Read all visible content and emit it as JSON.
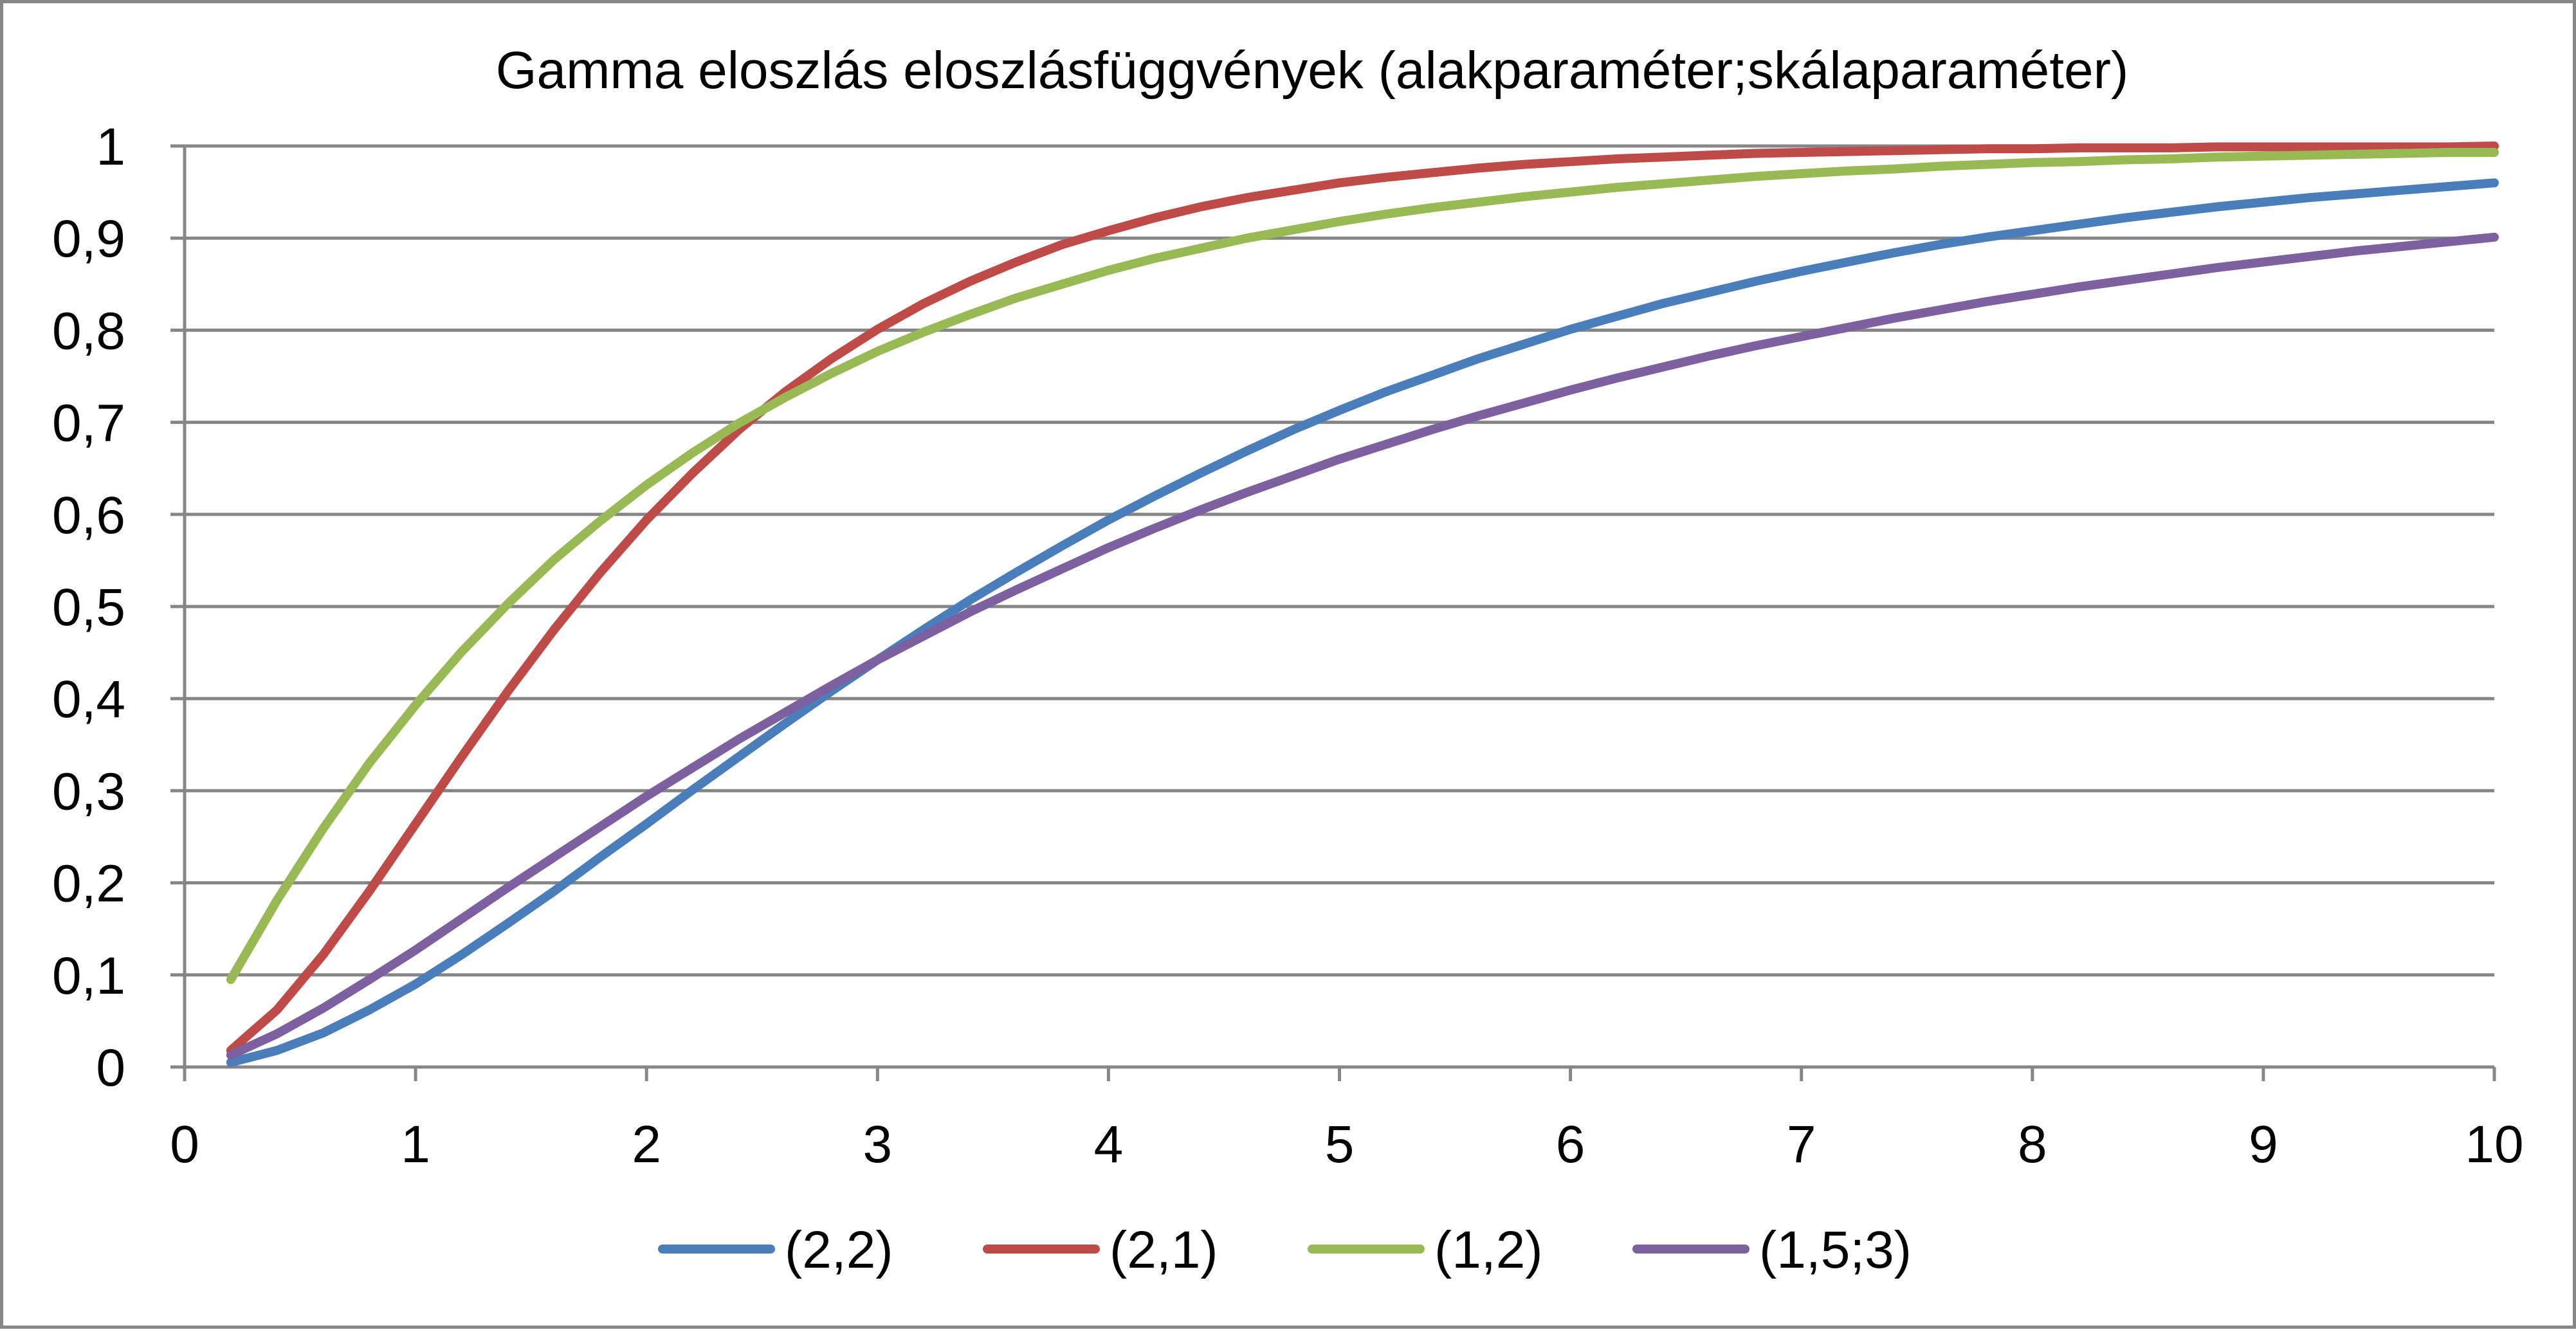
{
  "chart_data": {
    "type": "line",
    "title": "Gamma eloszlás eloszlásfüggvények (alakparaméter;skálaparaméter)",
    "xlabel": "",
    "ylabel": "",
    "xlim": [
      0,
      10
    ],
    "ylim": [
      0,
      1
    ],
    "x_ticks": [
      0,
      1,
      2,
      3,
      4,
      5,
      6,
      7,
      8,
      9,
      10
    ],
    "x_tick_labels": [
      "0",
      "1",
      "2",
      "3",
      "4",
      "5",
      "6",
      "7",
      "8",
      "9",
      "10"
    ],
    "y_ticks": [
      0,
      0.1,
      0.2,
      0.3,
      0.4,
      0.5,
      0.6,
      0.7,
      0.8,
      0.9,
      1
    ],
    "y_tick_labels": [
      "0",
      "0,1",
      "0,2",
      "0,3",
      "0,4",
      "0,5",
      "0,6",
      "0,7",
      "0,8",
      "0,9",
      "1"
    ],
    "grid": "horizontal",
    "legend_position": "bottom",
    "x": [
      0.2,
      0.4,
      0.6,
      0.8,
      1,
      1.2,
      1.4,
      1.6,
      1.8,
      2,
      2.2,
      2.4,
      2.6,
      2.8,
      3,
      3.2,
      3.4,
      3.6,
      3.8,
      4,
      4.2,
      4.4,
      4.6,
      4.8,
      5,
      5.2,
      5.4,
      5.6,
      5.8,
      6,
      6.2,
      6.4,
      6.6,
      6.8,
      7,
      7.2,
      7.4,
      7.6,
      7.8,
      8,
      8.2,
      8.4,
      8.6,
      8.8,
      9,
      9.2,
      9.4,
      9.6,
      9.8,
      10
    ],
    "series": [
      {
        "name": "(2,2)",
        "color": "#4a7ebb",
        "values": [
          0.005,
          0.018,
          0.037,
          0.062,
          0.09,
          0.122,
          0.156,
          0.191,
          0.228,
          0.264,
          0.301,
          0.337,
          0.373,
          0.408,
          0.442,
          0.475,
          0.507,
          0.537,
          0.566,
          0.594,
          0.62,
          0.645,
          0.669,
          0.692,
          0.713,
          0.733,
          0.751,
          0.769,
          0.785,
          0.801,
          0.815,
          0.829,
          0.841,
          0.853,
          0.864,
          0.874,
          0.884,
          0.893,
          0.901,
          0.908,
          0.915,
          0.922,
          0.928,
          0.934,
          0.939,
          0.944,
          0.948,
          0.952,
          0.956,
          0.96
        ]
      },
      {
        "name": "(2,1)",
        "color": "#be4b48",
        "values": [
          0.018,
          0.062,
          0.122,
          0.191,
          0.264,
          0.337,
          0.408,
          0.475,
          0.537,
          0.594,
          0.645,
          0.692,
          0.733,
          0.769,
          0.801,
          0.829,
          0.853,
          0.874,
          0.893,
          0.908,
          0.922,
          0.934,
          0.944,
          0.952,
          0.96,
          0.966,
          0.971,
          0.976,
          0.98,
          0.983,
          0.986,
          0.988,
          0.99,
          0.992,
          0.993,
          0.994,
          0.995,
          0.996,
          0.997,
          0.997,
          0.998,
          0.998,
          0.998,
          0.999,
          0.999,
          0.999,
          0.999,
          0.999,
          0.999,
          1.0
        ]
      },
      {
        "name": "(1,2)",
        "color": "#98b954",
        "values": [
          0.095,
          0.181,
          0.259,
          0.33,
          0.393,
          0.451,
          0.503,
          0.551,
          0.593,
          0.632,
          0.667,
          0.699,
          0.727,
          0.753,
          0.777,
          0.798,
          0.817,
          0.835,
          0.85,
          0.865,
          0.878,
          0.889,
          0.9,
          0.909,
          0.918,
          0.926,
          0.933,
          0.939,
          0.945,
          0.95,
          0.955,
          0.959,
          0.963,
          0.967,
          0.97,
          0.973,
          0.975,
          0.978,
          0.98,
          0.982,
          0.983,
          0.985,
          0.986,
          0.988,
          0.989,
          0.99,
          0.991,
          0.992,
          0.993,
          0.993
        ]
      },
      {
        "name": "(1,5;3)",
        "color": "#7d60a0",
        "values": [
          0.013,
          0.036,
          0.064,
          0.095,
          0.127,
          0.161,
          0.195,
          0.228,
          0.261,
          0.294,
          0.325,
          0.356,
          0.385,
          0.414,
          0.442,
          0.468,
          0.494,
          0.518,
          0.541,
          0.564,
          0.585,
          0.605,
          0.624,
          0.642,
          0.66,
          0.676,
          0.692,
          0.707,
          0.721,
          0.735,
          0.748,
          0.76,
          0.772,
          0.783,
          0.793,
          0.803,
          0.813,
          0.822,
          0.831,
          0.839,
          0.847,
          0.854,
          0.861,
          0.868,
          0.874,
          0.88,
          0.886,
          0.891,
          0.896,
          0.901
        ]
      }
    ]
  }
}
